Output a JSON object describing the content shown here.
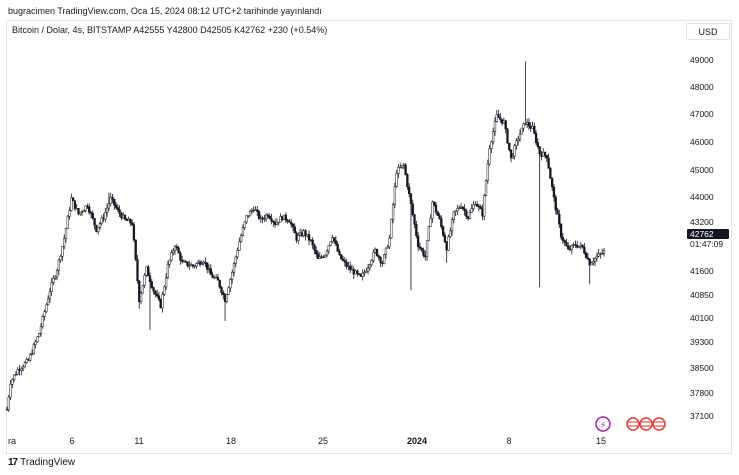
{
  "caption": "bugracimen TradingView.com, Oca 15, 2024 08:12 UTC+2 tarihinde yayınlandı",
  "legend": "Bitcoin / Dolar, 4s, BITSTAMP  A42555  Y42800  D42505  K42762  +230 (+0.54%)",
  "currency": "USD",
  "footer": {
    "logo_text": "TradingView",
    "mark": "17"
  },
  "last_price": {
    "value": "42762",
    "countdown": "01:47:09"
  },
  "colors": {
    "candle": "#131722",
    "last_label_bg": "#131722",
    "event_icon": "#9c27b0",
    "flag": "#e53935"
  },
  "chart_data": {
    "type": "candlestick",
    "y_axis_ticks": [
      "49000",
      "48000",
      "47000",
      "46000",
      "45000",
      "44000",
      "43200",
      "41600",
      "40850",
      "40100",
      "39300",
      "38500",
      "37800",
      "37100"
    ],
    "x_axis_ticks": [
      "Ara",
      "6",
      "11",
      "18",
      "25",
      "2024",
      "8",
      "15"
    ],
    "ylim": [
      36600,
      49500
    ],
    "grid": false,
    "path_points": [
      [
        0,
        37600
      ],
      [
        2,
        38500
      ],
      [
        6,
        38900
      ],
      [
        12,
        39200
      ],
      [
        18,
        40100
      ],
      [
        24,
        41500
      ],
      [
        28,
        42200
      ],
      [
        32,
        43200
      ],
      [
        36,
        44500
      ],
      [
        40,
        44000
      ],
      [
        45,
        44300
      ],
      [
        50,
        43500
      ],
      [
        54,
        43900
      ],
      [
        58,
        44500
      ],
      [
        62,
        44100
      ],
      [
        66,
        43800
      ],
      [
        70,
        43700
      ],
      [
        74,
        41200
      ],
      [
        78,
        42200
      ],
      [
        82,
        41500
      ],
      [
        86,
        41000
      ],
      [
        90,
        42300
      ],
      [
        94,
        43000
      ],
      [
        98,
        42400
      ],
      [
        104,
        42300
      ],
      [
        110,
        42500
      ],
      [
        114,
        42000
      ],
      [
        118,
        41800
      ],
      [
        122,
        41200
      ],
      [
        126,
        42100
      ],
      [
        130,
        43100
      ],
      [
        134,
        43900
      ],
      [
        138,
        44200
      ],
      [
        142,
        43800
      ],
      [
        146,
        44000
      ],
      [
        150,
        43700
      ],
      [
        154,
        43900
      ],
      [
        158,
        43800
      ],
      [
        162,
        43200
      ],
      [
        166,
        43400
      ],
      [
        170,
        43100
      ],
      [
        174,
        42500
      ],
      [
        178,
        42700
      ],
      [
        182,
        43300
      ],
      [
        186,
        42600
      ],
      [
        190,
        42300
      ],
      [
        194,
        42100
      ],
      [
        198,
        41900
      ],
      [
        202,
        42300
      ],
      [
        206,
        42800
      ],
      [
        210,
        42400
      ],
      [
        214,
        43200
      ],
      [
        218,
        45400
      ],
      [
        222,
        45600
      ],
      [
        226,
        44300
      ],
      [
        230,
        43000
      ],
      [
        234,
        42600
      ],
      [
        238,
        44400
      ],
      [
        242,
        43800
      ],
      [
        246,
        42900
      ],
      [
        250,
        44000
      ],
      [
        254,
        44300
      ],
      [
        258,
        43900
      ],
      [
        262,
        44400
      ],
      [
        266,
        44000
      ],
      [
        270,
        46200
      ],
      [
        274,
        47200
      ],
      [
        278,
        47000
      ],
      [
        282,
        45800
      ],
      [
        286,
        46500
      ],
      [
        290,
        47000
      ],
      [
        294,
        46800
      ],
      [
        298,
        46000
      ],
      [
        302,
        45900
      ],
      [
        306,
        44500
      ],
      [
        310,
        43300
      ],
      [
        314,
        42800
      ],
      [
        318,
        43000
      ],
      [
        322,
        42900
      ],
      [
        326,
        42400
      ],
      [
        330,
        42600
      ],
      [
        334,
        42762
      ]
    ],
    "spikes": [
      [
        57,
        44700
      ],
      [
        74,
        40900
      ],
      [
        80,
        40200
      ],
      [
        122,
        40500
      ],
      [
        226,
        41500
      ],
      [
        246,
        42400
      ],
      [
        274,
        47400
      ],
      [
        290,
        49000
      ],
      [
        298,
        41600
      ],
      [
        326,
        41700
      ]
    ]
  }
}
